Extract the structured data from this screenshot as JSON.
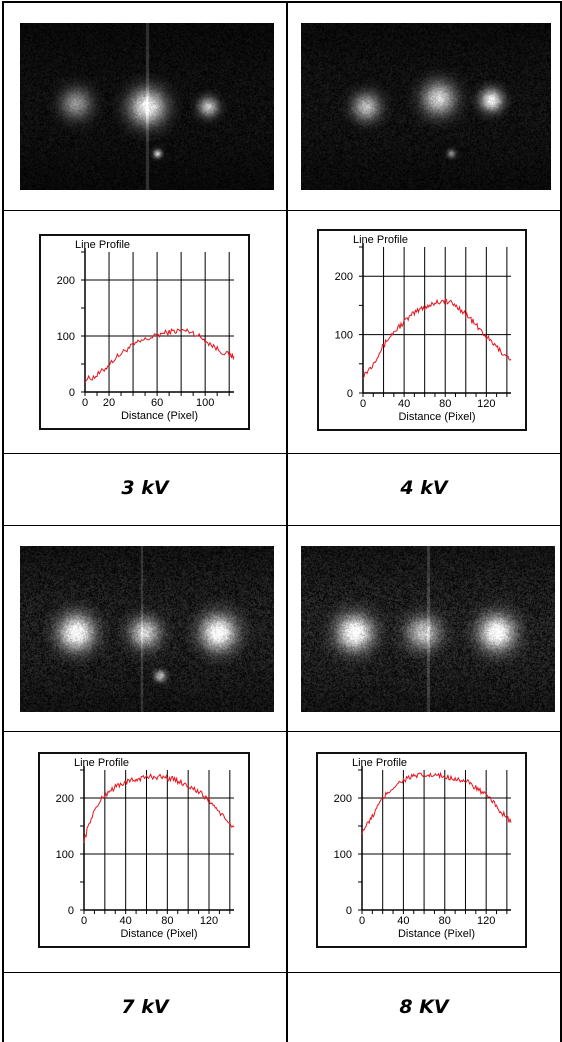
{
  "panels": [
    {
      "voltage_label": "3 kV",
      "image_alt": "3 kV emission image"
    },
    {
      "voltage_label": "4 kV",
      "image_alt": "4 kV emission image"
    },
    {
      "voltage_label": "7 kV",
      "image_alt": "7 kV emission image"
    },
    {
      "voltage_label": "8 KV",
      "image_alt": "8 KV emission image"
    }
  ],
  "chart_data": [
    {
      "type": "line",
      "title": "Line Profile",
      "xlabel": "Distance (Pixel)",
      "ylabel": "",
      "xlim": [
        0,
        124
      ],
      "ylim": [
        0,
        250
      ],
      "xticks": [
        0,
        20,
        60,
        100
      ],
      "yticks": [
        0,
        100,
        200
      ],
      "grid": true,
      "color": "#e8141c",
      "series": [
        {
          "x": [
            0,
            8,
            16,
            24,
            32,
            40,
            48,
            56,
            64,
            72,
            80,
            88,
            96,
            104,
            112,
            120,
            124
          ],
          "values": [
            22,
            27,
            40,
            58,
            72,
            84,
            92,
            98,
            104,
            108,
            110,
            108,
            98,
            86,
            74,
            66,
            64
          ]
        }
      ]
    },
    {
      "type": "line",
      "title": "Line Profile",
      "xlabel": "Distance (Pixel)",
      "ylabel": "",
      "xlim": [
        0,
        144
      ],
      "ylim": [
        0,
        250
      ],
      "xticks": [
        0,
        40,
        80,
        120
      ],
      "yticks": [
        0,
        100,
        200
      ],
      "grid": true,
      "color": "#e8141c",
      "series": [
        {
          "x": [
            0,
            8,
            16,
            24,
            32,
            40,
            48,
            56,
            64,
            72,
            80,
            88,
            96,
            104,
            112,
            120,
            128,
            136,
            144
          ],
          "values": [
            30,
            45,
            70,
            92,
            108,
            122,
            134,
            144,
            150,
            156,
            158,
            152,
            142,
            128,
            112,
            96,
            82,
            68,
            58
          ]
        }
      ]
    },
    {
      "type": "line",
      "title": "Line Profile",
      "xlabel": "Distance (Pixel)",
      "ylabel": "",
      "xlim": [
        0,
        144
      ],
      "ylim": [
        0,
        250
      ],
      "xticks": [
        0,
        40,
        80,
        120
      ],
      "yticks": [
        0,
        100,
        200
      ],
      "grid": true,
      "color": "#e8141c",
      "series": [
        {
          "x": [
            0,
            8,
            16,
            24,
            32,
            40,
            48,
            56,
            64,
            72,
            80,
            88,
            96,
            104,
            112,
            120,
            128,
            136,
            144
          ],
          "values": [
            125,
            170,
            196,
            212,
            222,
            228,
            232,
            236,
            238,
            238,
            236,
            232,
            226,
            218,
            208,
            196,
            180,
            160,
            148
          ]
        }
      ]
    },
    {
      "type": "line",
      "title": "Line Profile",
      "xlabel": "Distance (Pixel)",
      "ylabel": "",
      "xlim": [
        0,
        144
      ],
      "ylim": [
        0,
        250
      ],
      "xticks": [
        0,
        40,
        80,
        120
      ],
      "yticks": [
        0,
        100,
        200
      ],
      "grid": true,
      "color": "#e8141c",
      "series": [
        {
          "x": [
            0,
            8,
            16,
            24,
            32,
            40,
            48,
            56,
            64,
            72,
            80,
            88,
            96,
            104,
            112,
            120,
            128,
            136,
            144
          ],
          "values": [
            140,
            160,
            188,
            208,
            222,
            232,
            238,
            240,
            240,
            240,
            238,
            236,
            232,
            226,
            216,
            204,
            190,
            172,
            156
          ]
        }
      ]
    }
  ]
}
